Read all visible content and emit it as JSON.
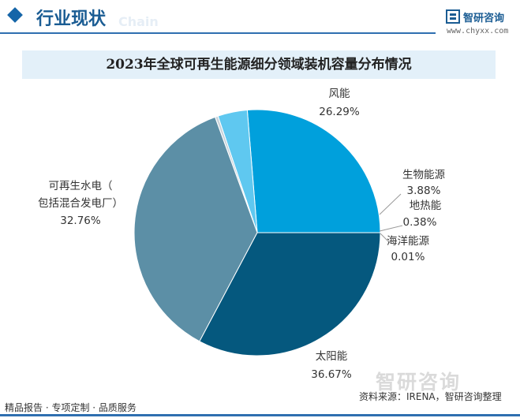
{
  "header": {
    "section_title": "行业现状",
    "ghost_text": "Chain",
    "logo_name": "智研咨询",
    "logo_url": "www.chyxx.com"
  },
  "colors": {
    "brand": "#1a5c93",
    "title_band": "#e3f0f9"
  },
  "chart_data": {
    "type": "pie",
    "title": "2023年全球可再生能源细分领域装机容量分布情况",
    "slices": [
      {
        "name": "风能",
        "value": 26.29,
        "label": "26.29%",
        "color": "#00a0dc"
      },
      {
        "name": "生物能源",
        "value": 3.88,
        "label": "3.88%",
        "color": "#5fc8f0"
      },
      {
        "name": "地热能",
        "value": 0.38,
        "label": "0.38%",
        "color": "#c8d2da"
      },
      {
        "name": "海洋能源",
        "value": 0.01,
        "label": "0.01%",
        "color": "#8fa9b8"
      },
      {
        "name": "太阳能",
        "value": 36.67,
        "label": "36.67%",
        "color": "#5c8fa6"
      },
      {
        "name": "可再生水电（包括混合发电厂）",
        "value": 32.76,
        "label": "32.76%",
        "color": "#05587e"
      }
    ],
    "start_angle_deg": 0,
    "direction": "counterclockwise"
  },
  "footer": {
    "left": "精品报告 · 专项定制 · 品质服务",
    "source": "资料来源：IRENA，智研咨询整理",
    "watermark": "智研咨询"
  }
}
